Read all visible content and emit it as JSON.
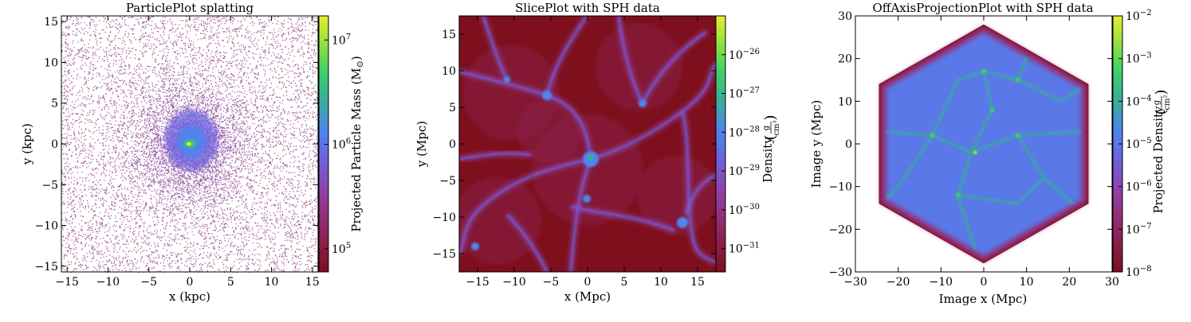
{
  "colors": {
    "colormap": [
      "#7e0f1c",
      "#8a1f4a",
      "#94307a",
      "#8c46b0",
      "#6c63e0",
      "#4d86ec",
      "#39ad9a",
      "#3dcf6a",
      "#8ee040",
      "#e8ee30"
    ]
  },
  "chart_data": [
    {
      "type": "heatmap",
      "title": "ParticlePlot splatting",
      "xlabel": "x  (kpc)",
      "ylabel": "y  (kpc)",
      "xlim": [
        -15.7,
        15.7
      ],
      "ylim": [
        -15.7,
        15.7
      ],
      "xticks": [
        -15,
        -10,
        -5,
        0,
        5,
        10,
        15
      ],
      "xtick_labels": [
        "−15",
        "−10",
        "−5",
        "0",
        "5",
        "10",
        "15"
      ],
      "yticks": [
        -15,
        -10,
        -5,
        0,
        5,
        10,
        15
      ],
      "ytick_labels": [
        "−15",
        "−10",
        "−5",
        "0",
        "5",
        "10",
        "15"
      ],
      "colorbar": {
        "label": "Projected Particle Mass  (M",
        "label_unit": "⊙",
        "label_close": ")",
        "scale": "log",
        "range": [
          60000,
          17000000
        ],
        "ticks": [
          100000,
          1000000,
          10000000
        ],
        "tick_labels": [
          {
            "base": "10",
            "exp": "5"
          },
          {
            "base": "10",
            "exp": "6"
          },
          {
            "base": "10",
            "exp": "7"
          }
        ]
      },
      "grid": false
    },
    {
      "type": "heatmap",
      "title": "SlicePlot with SPH data",
      "xlabel": "x  (Mpc)",
      "ylabel": "y  (Mpc)",
      "xlim": [
        -17.5,
        17.5
      ],
      "ylim": [
        -17.5,
        17.5
      ],
      "xticks": [
        -15,
        -10,
        -5,
        0,
        5,
        10,
        15
      ],
      "xtick_labels": [
        "−15",
        "−10",
        "−5",
        "0",
        "5",
        "10",
        "15"
      ],
      "yticks": [
        -15,
        -10,
        -5,
        0,
        5,
        10,
        15
      ],
      "ytick_labels": [
        "−15",
        "−10",
        "−5",
        "0",
        "5",
        "10",
        "15"
      ],
      "colorbar": {
        "label": "Density",
        "label_unit_num": "g",
        "label_unit_den": "cm³",
        "scale": "log",
        "range": [
          2.5e-32,
          1e-25
        ],
        "ticks": [
          1e-31,
          1e-30,
          1e-29,
          1e-28,
          1e-27,
          1e-26
        ],
        "tick_labels": [
          {
            "base": "10",
            "exp": "−31"
          },
          {
            "base": "10",
            "exp": "−30"
          },
          {
            "base": "10",
            "exp": "−29"
          },
          {
            "base": "10",
            "exp": "−28"
          },
          {
            "base": "10",
            "exp": "−27"
          },
          {
            "base": "10",
            "exp": "−26"
          }
        ]
      },
      "grid": false
    },
    {
      "type": "heatmap",
      "title": "OffAxisProjectionPlot with SPH data",
      "xlabel": "Image x  (Mpc)",
      "ylabel": "Image y  (Mpc)",
      "xlim": [
        -30,
        30
      ],
      "ylim": [
        -30,
        30
      ],
      "xticks": [
        -30,
        -20,
        -10,
        0,
        10,
        20,
        30
      ],
      "xtick_labels": [
        "−30",
        "−20",
        "−10",
        "0",
        "10",
        "20",
        "30"
      ],
      "yticks": [
        -30,
        -20,
        -10,
        0,
        10,
        20,
        30
      ],
      "ytick_labels": [
        "−30",
        "−20",
        "−10",
        "0",
        "10",
        "20",
        "30"
      ],
      "colorbar": {
        "label": "Projected Density",
        "label_unit_num": "g",
        "label_unit_den": "cm²",
        "scale": "log",
        "range": [
          1e-08,
          0.01
        ],
        "ticks": [
          1e-08,
          1e-07,
          1e-06,
          1e-05,
          0.0001,
          0.001,
          0.01
        ],
        "tick_labels": [
          {
            "base": "10",
            "exp": "−8"
          },
          {
            "base": "10",
            "exp": "−7"
          },
          {
            "base": "10",
            "exp": "−6"
          },
          {
            "base": "10",
            "exp": "−5"
          },
          {
            "base": "10",
            "exp": "−4"
          },
          {
            "base": "10",
            "exp": "−3"
          },
          {
            "base": "10",
            "exp": "−2"
          }
        ]
      },
      "grid": false
    }
  ]
}
